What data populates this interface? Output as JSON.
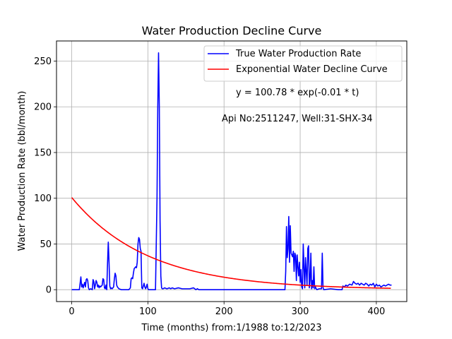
{
  "chart_data": {
    "type": "line",
    "title": "Water Production Decline Curve",
    "xlabel": "Time (months) from:1/1988 to:12/2023",
    "ylabel": "Water Production Rate (bbl/month)",
    "xlim": [
      -20,
      440
    ],
    "ylim": [
      -13,
      272
    ],
    "xticks": [
      0,
      100,
      200,
      300,
      400
    ],
    "yticks": [
      0,
      50,
      100,
      150,
      200,
      250
    ],
    "grid": true,
    "legend_position": "top-right",
    "annotations": [
      "y = 100.78 * exp(-0.01 * t)",
      "Api No:2511247, Well:31-SHX-34"
    ],
    "series": [
      {
        "name": "True Water Production Rate",
        "color": "#0000ff",
        "points": [
          [
            0,
            0
          ],
          [
            5,
            0
          ],
          [
            10,
            0
          ],
          [
            12,
            14
          ],
          [
            13,
            3
          ],
          [
            14,
            6
          ],
          [
            15,
            2
          ],
          [
            16,
            5
          ],
          [
            17,
            8
          ],
          [
            18,
            3
          ],
          [
            19,
            11
          ],
          [
            20,
            12
          ],
          [
            21,
            10
          ],
          [
            22,
            2
          ],
          [
            23,
            0
          ],
          [
            25,
            1
          ],
          [
            27,
            0
          ],
          [
            28,
            11
          ],
          [
            29,
            9
          ],
          [
            30,
            1
          ],
          [
            31,
            5
          ],
          [
            32,
            10
          ],
          [
            33,
            8
          ],
          [
            34,
            3
          ],
          [
            35,
            5
          ],
          [
            36,
            2
          ],
          [
            37,
            4
          ],
          [
            38,
            3
          ],
          [
            40,
            5
          ],
          [
            41,
            12
          ],
          [
            42,
            11
          ],
          [
            43,
            2
          ],
          [
            44,
            1
          ],
          [
            45,
            5
          ],
          [
            46,
            0
          ],
          [
            47,
            28
          ],
          [
            48,
            52
          ],
          [
            49,
            30
          ],
          [
            50,
            4
          ],
          [
            51,
            1
          ],
          [
            52,
            2
          ],
          [
            53,
            1
          ],
          [
            54,
            2
          ],
          [
            55,
            3
          ],
          [
            56,
            12
          ],
          [
            57,
            18
          ],
          [
            58,
            15
          ],
          [
            59,
            5
          ],
          [
            60,
            3
          ],
          [
            61,
            2
          ],
          [
            62,
            1
          ],
          [
            65,
            0
          ],
          [
            75,
            0
          ],
          [
            77,
            2
          ],
          [
            78,
            12
          ],
          [
            79,
            13
          ],
          [
            80,
            12
          ],
          [
            81,
            18
          ],
          [
            82,
            23
          ],
          [
            83,
            24
          ],
          [
            84,
            25
          ],
          [
            85,
            24
          ],
          [
            86,
            30
          ],
          [
            87,
            50
          ],
          [
            88,
            57
          ],
          [
            89,
            55
          ],
          [
            90,
            45
          ],
          [
            91,
            42
          ],
          [
            92,
            2
          ],
          [
            93,
            1
          ],
          [
            94,
            4
          ],
          [
            95,
            7
          ],
          [
            96,
            3
          ],
          [
            97,
            1
          ],
          [
            98,
            3
          ],
          [
            99,
            6
          ],
          [
            100,
            1
          ],
          [
            101,
            0
          ],
          [
            105,
            0
          ],
          [
            110,
            0
          ],
          [
            112,
            100
          ],
          [
            113,
            200
          ],
          [
            114,
            259
          ],
          [
            115,
            200
          ],
          [
            116,
            75
          ],
          [
            117,
            15
          ],
          [
            118,
            2
          ],
          [
            119,
            1
          ],
          [
            120,
            1
          ],
          [
            122,
            2
          ],
          [
            125,
            1
          ],
          [
            128,
            2
          ],
          [
            130,
            1
          ],
          [
            132,
            2
          ],
          [
            135,
            1
          ],
          [
            140,
            2
          ],
          [
            145,
            1
          ],
          [
            150,
            1
          ],
          [
            155,
            1
          ],
          [
            160,
            2
          ],
          [
            163,
            0
          ],
          [
            165,
            1
          ],
          [
            167,
            0
          ],
          [
            200,
            0
          ],
          [
            250,
            0
          ],
          [
            280,
            0
          ],
          [
            281,
            20
          ],
          [
            282,
            69
          ],
          [
            283,
            35
          ],
          [
            284,
            45
          ],
          [
            285,
            80
          ],
          [
            286,
            30
          ],
          [
            287,
            70
          ],
          [
            288,
            40
          ],
          [
            289,
            38
          ],
          [
            290,
            36
          ],
          [
            291,
            42
          ],
          [
            292,
            20
          ],
          [
            293,
            40
          ],
          [
            294,
            37
          ],
          [
            295,
            10
          ],
          [
            296,
            38
          ],
          [
            297,
            25
          ],
          [
            298,
            15
          ],
          [
            299,
            30
          ],
          [
            300,
            8
          ],
          [
            301,
            22
          ],
          [
            302,
            3
          ],
          [
            303,
            1
          ],
          [
            304,
            50
          ],
          [
            305,
            25
          ],
          [
            306,
            2
          ],
          [
            307,
            35
          ],
          [
            308,
            20
          ],
          [
            309,
            5
          ],
          [
            310,
            45
          ],
          [
            311,
            48
          ],
          [
            312,
            2
          ],
          [
            313,
            10
          ],
          [
            314,
            40
          ],
          [
            315,
            1
          ],
          [
            316,
            10
          ],
          [
            317,
            2
          ],
          [
            318,
            25
          ],
          [
            319,
            1
          ],
          [
            320,
            3
          ],
          [
            321,
            1
          ],
          [
            322,
            0
          ],
          [
            325,
            1
          ],
          [
            328,
            1
          ],
          [
            329,
            40
          ],
          [
            330,
            2
          ],
          [
            331,
            0
          ],
          [
            340,
            1
          ],
          [
            350,
            0
          ],
          [
            355,
            0
          ],
          [
            356,
            4
          ],
          [
            358,
            3
          ],
          [
            360,
            5
          ],
          [
            362,
            4
          ],
          [
            365,
            6
          ],
          [
            368,
            5
          ],
          [
            370,
            9
          ],
          [
            372,
            7
          ],
          [
            374,
            6
          ],
          [
            376,
            7
          ],
          [
            378,
            5
          ],
          [
            380,
            7
          ],
          [
            382,
            6
          ],
          [
            384,
            5
          ],
          [
            386,
            7
          ],
          [
            388,
            6
          ],
          [
            390,
            4
          ],
          [
            392,
            6
          ],
          [
            394,
            5
          ],
          [
            396,
            7
          ],
          [
            398,
            3
          ],
          [
            400,
            6
          ],
          [
            402,
            4
          ],
          [
            404,
            5
          ],
          [
            406,
            3
          ],
          [
            408,
            4
          ],
          [
            410,
            5
          ],
          [
            412,
            4
          ],
          [
            414,
            5
          ],
          [
            416,
            6
          ],
          [
            418,
            5
          ],
          [
            420,
            5
          ]
        ]
      },
      {
        "name": "Exponential Water Decline Curve",
        "color": "#ff0000",
        "function": "exponential",
        "a": 100.78,
        "b": -0.01,
        "x_range": [
          0,
          419
        ]
      }
    ]
  }
}
